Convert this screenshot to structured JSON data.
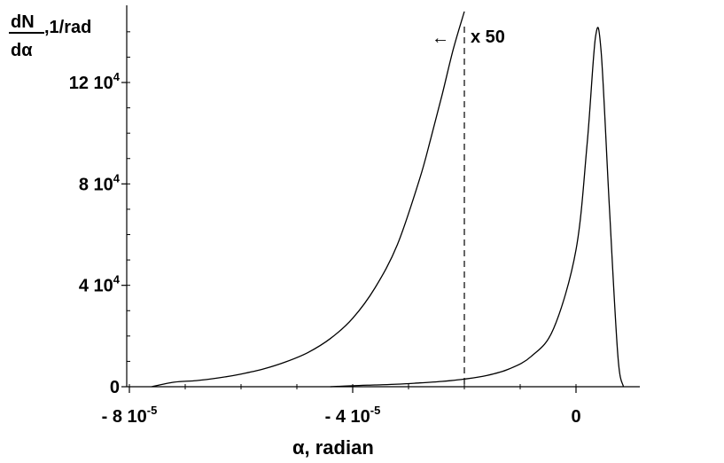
{
  "chart_data": {
    "type": "line",
    "ylabel": {
      "numerator": "dN",
      "denominator": "dα",
      "unit": ",1/rad"
    },
    "xlabel": "α, radian",
    "x_ticks": [
      {
        "value": -8e-05,
        "label": "- 8 10",
        "exp": "-5"
      },
      {
        "value": -4e-05,
        "label": "- 4 10",
        "exp": "-5"
      },
      {
        "value": 0,
        "label": "0",
        "exp": ""
      }
    ],
    "y_ticks": [
      {
        "value": 0,
        "label": "0",
        "exp": ""
      },
      {
        "value": 40000,
        "label": "4 10",
        "exp": "4"
      },
      {
        "value": 80000,
        "label": "8 10",
        "exp": "4"
      },
      {
        "value": 120000,
        "label": "12 10",
        "exp": "4"
      }
    ],
    "xlim": [
      -9.1e-05,
      1e-05
    ],
    "ylim": [
      0,
      150000
    ],
    "annotation": {
      "text": "x 50",
      "arrow": "←",
      "x": -2e-05
    },
    "series": [
      {
        "x": [
          -7.6e-05,
          -7.2e-05,
          -6.8e-05,
          -6.4e-05,
          -6e-05,
          -5.6e-05,
          -5.2e-05,
          -4.8e-05,
          -4.4e-05,
          -4e-05,
          -3.6e-05,
          -3.2e-05,
          -2.8e-05,
          -2.6e-05,
          -2.4e-05,
          -2.2e-05,
          -2e-05
        ],
        "y": [
          0,
          1800,
          2400,
          3500,
          5000,
          7000,
          9800,
          13500,
          19000,
          27000,
          39000,
          56000,
          82000,
          98000,
          115000,
          133000,
          148000
        ]
      },
      {
        "x": [
          -4.4e-05,
          -4e-05,
          -3.6e-05,
          -3.2e-05,
          -2.8e-05,
          -2.4e-05,
          -2e-05,
          -1.6e-05,
          -1.2e-05,
          -8e-06,
          -4e-06,
          0.0,
          2e-06,
          3.5e-06,
          4.5e-06,
          6e-06,
          7.5e-06,
          8.5e-06
        ],
        "y": [
          0,
          400,
          700,
          1000,
          1500,
          2100,
          3000,
          4400,
          7000,
          12000,
          23000,
          54000,
          96000,
          138000,
          132000,
          70000,
          12000,
          0
        ]
      }
    ]
  }
}
